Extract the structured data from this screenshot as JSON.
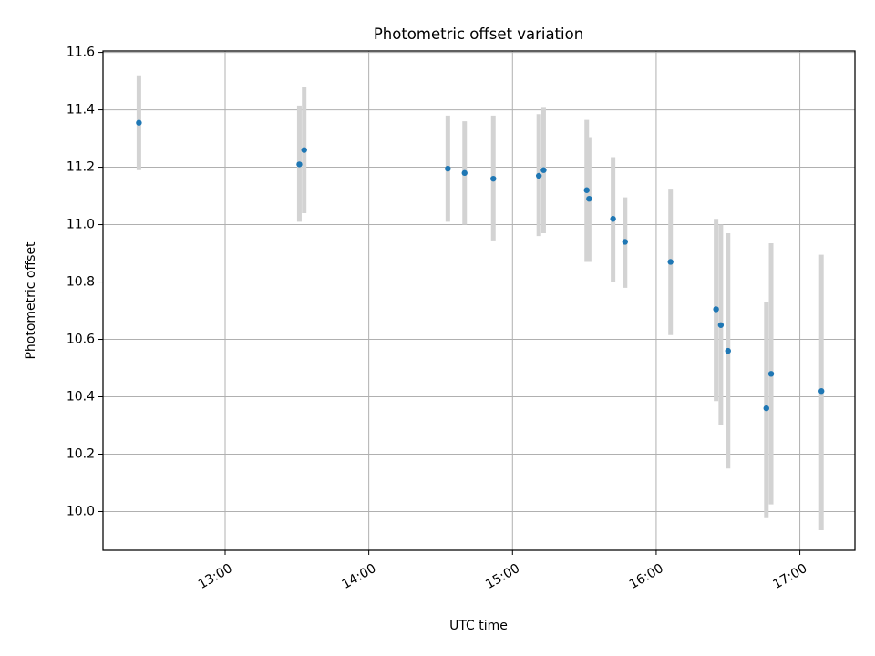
{
  "chart_data": {
    "type": "scatter",
    "title": "Photometric offset variation",
    "xlabel": "UTC time",
    "ylabel": "Photometric offset",
    "xlim": [
      "12:09",
      "17:23"
    ],
    "ylim": [
      9.865,
      11.605
    ],
    "xticks": [
      "13:00",
      "14:00",
      "15:00",
      "16:00",
      "17:00"
    ],
    "yticks": [
      "10.0",
      "10.2",
      "10.4",
      "10.6",
      "10.8",
      "11.0",
      "11.2",
      "11.4",
      "11.6"
    ],
    "grid": true,
    "series": [
      {
        "points": [
          {
            "x": "12:24",
            "y": 11.355,
            "lo": 11.19,
            "hi": 11.52
          },
          {
            "x": "13:31",
            "y": 11.21,
            "lo": 11.01,
            "hi": 11.415
          },
          {
            "x": "13:33",
            "y": 11.26,
            "lo": 11.04,
            "hi": 11.48
          },
          {
            "x": "14:33",
            "y": 11.195,
            "lo": 11.01,
            "hi": 11.38
          },
          {
            "x": "14:40",
            "y": 11.18,
            "lo": 11.0,
            "hi": 11.36
          },
          {
            "x": "14:52",
            "y": 11.16,
            "lo": 10.945,
            "hi": 11.38
          },
          {
            "x": "15:11",
            "y": 11.17,
            "lo": 10.96,
            "hi": 11.385
          },
          {
            "x": "15:13",
            "y": 11.19,
            "lo": 10.97,
            "hi": 11.41
          },
          {
            "x": "15:31",
            "y": 11.12,
            "lo": 10.87,
            "hi": 11.365
          },
          {
            "x": "15:32",
            "y": 11.09,
            "lo": 10.87,
            "hi": 11.305
          },
          {
            "x": "15:42",
            "y": 11.02,
            "lo": 10.8,
            "hi": 11.235
          },
          {
            "x": "15:47",
            "y": 10.94,
            "lo": 10.78,
            "hi": 11.095
          },
          {
            "x": "16:06",
            "y": 10.87,
            "lo": 10.615,
            "hi": 11.125
          },
          {
            "x": "16:25",
            "y": 10.705,
            "lo": 10.385,
            "hi": 11.02
          },
          {
            "x": "16:27",
            "y": 10.65,
            "lo": 10.3,
            "hi": 11.0
          },
          {
            "x": "16:30",
            "y": 10.56,
            "lo": 10.15,
            "hi": 10.97
          },
          {
            "x": "16:46",
            "y": 10.36,
            "lo": 9.98,
            "hi": 10.73
          },
          {
            "x": "16:48",
            "y": 10.48,
            "lo": 10.025,
            "hi": 10.935
          },
          {
            "x": "17:09",
            "y": 10.42,
            "lo": 9.935,
            "hi": 10.895
          }
        ]
      }
    ]
  },
  "colors": {
    "point": "#1f77b4",
    "errorbar": "#d3d3d3",
    "grid": "#b0b0b0",
    "axes": "#000000"
  }
}
